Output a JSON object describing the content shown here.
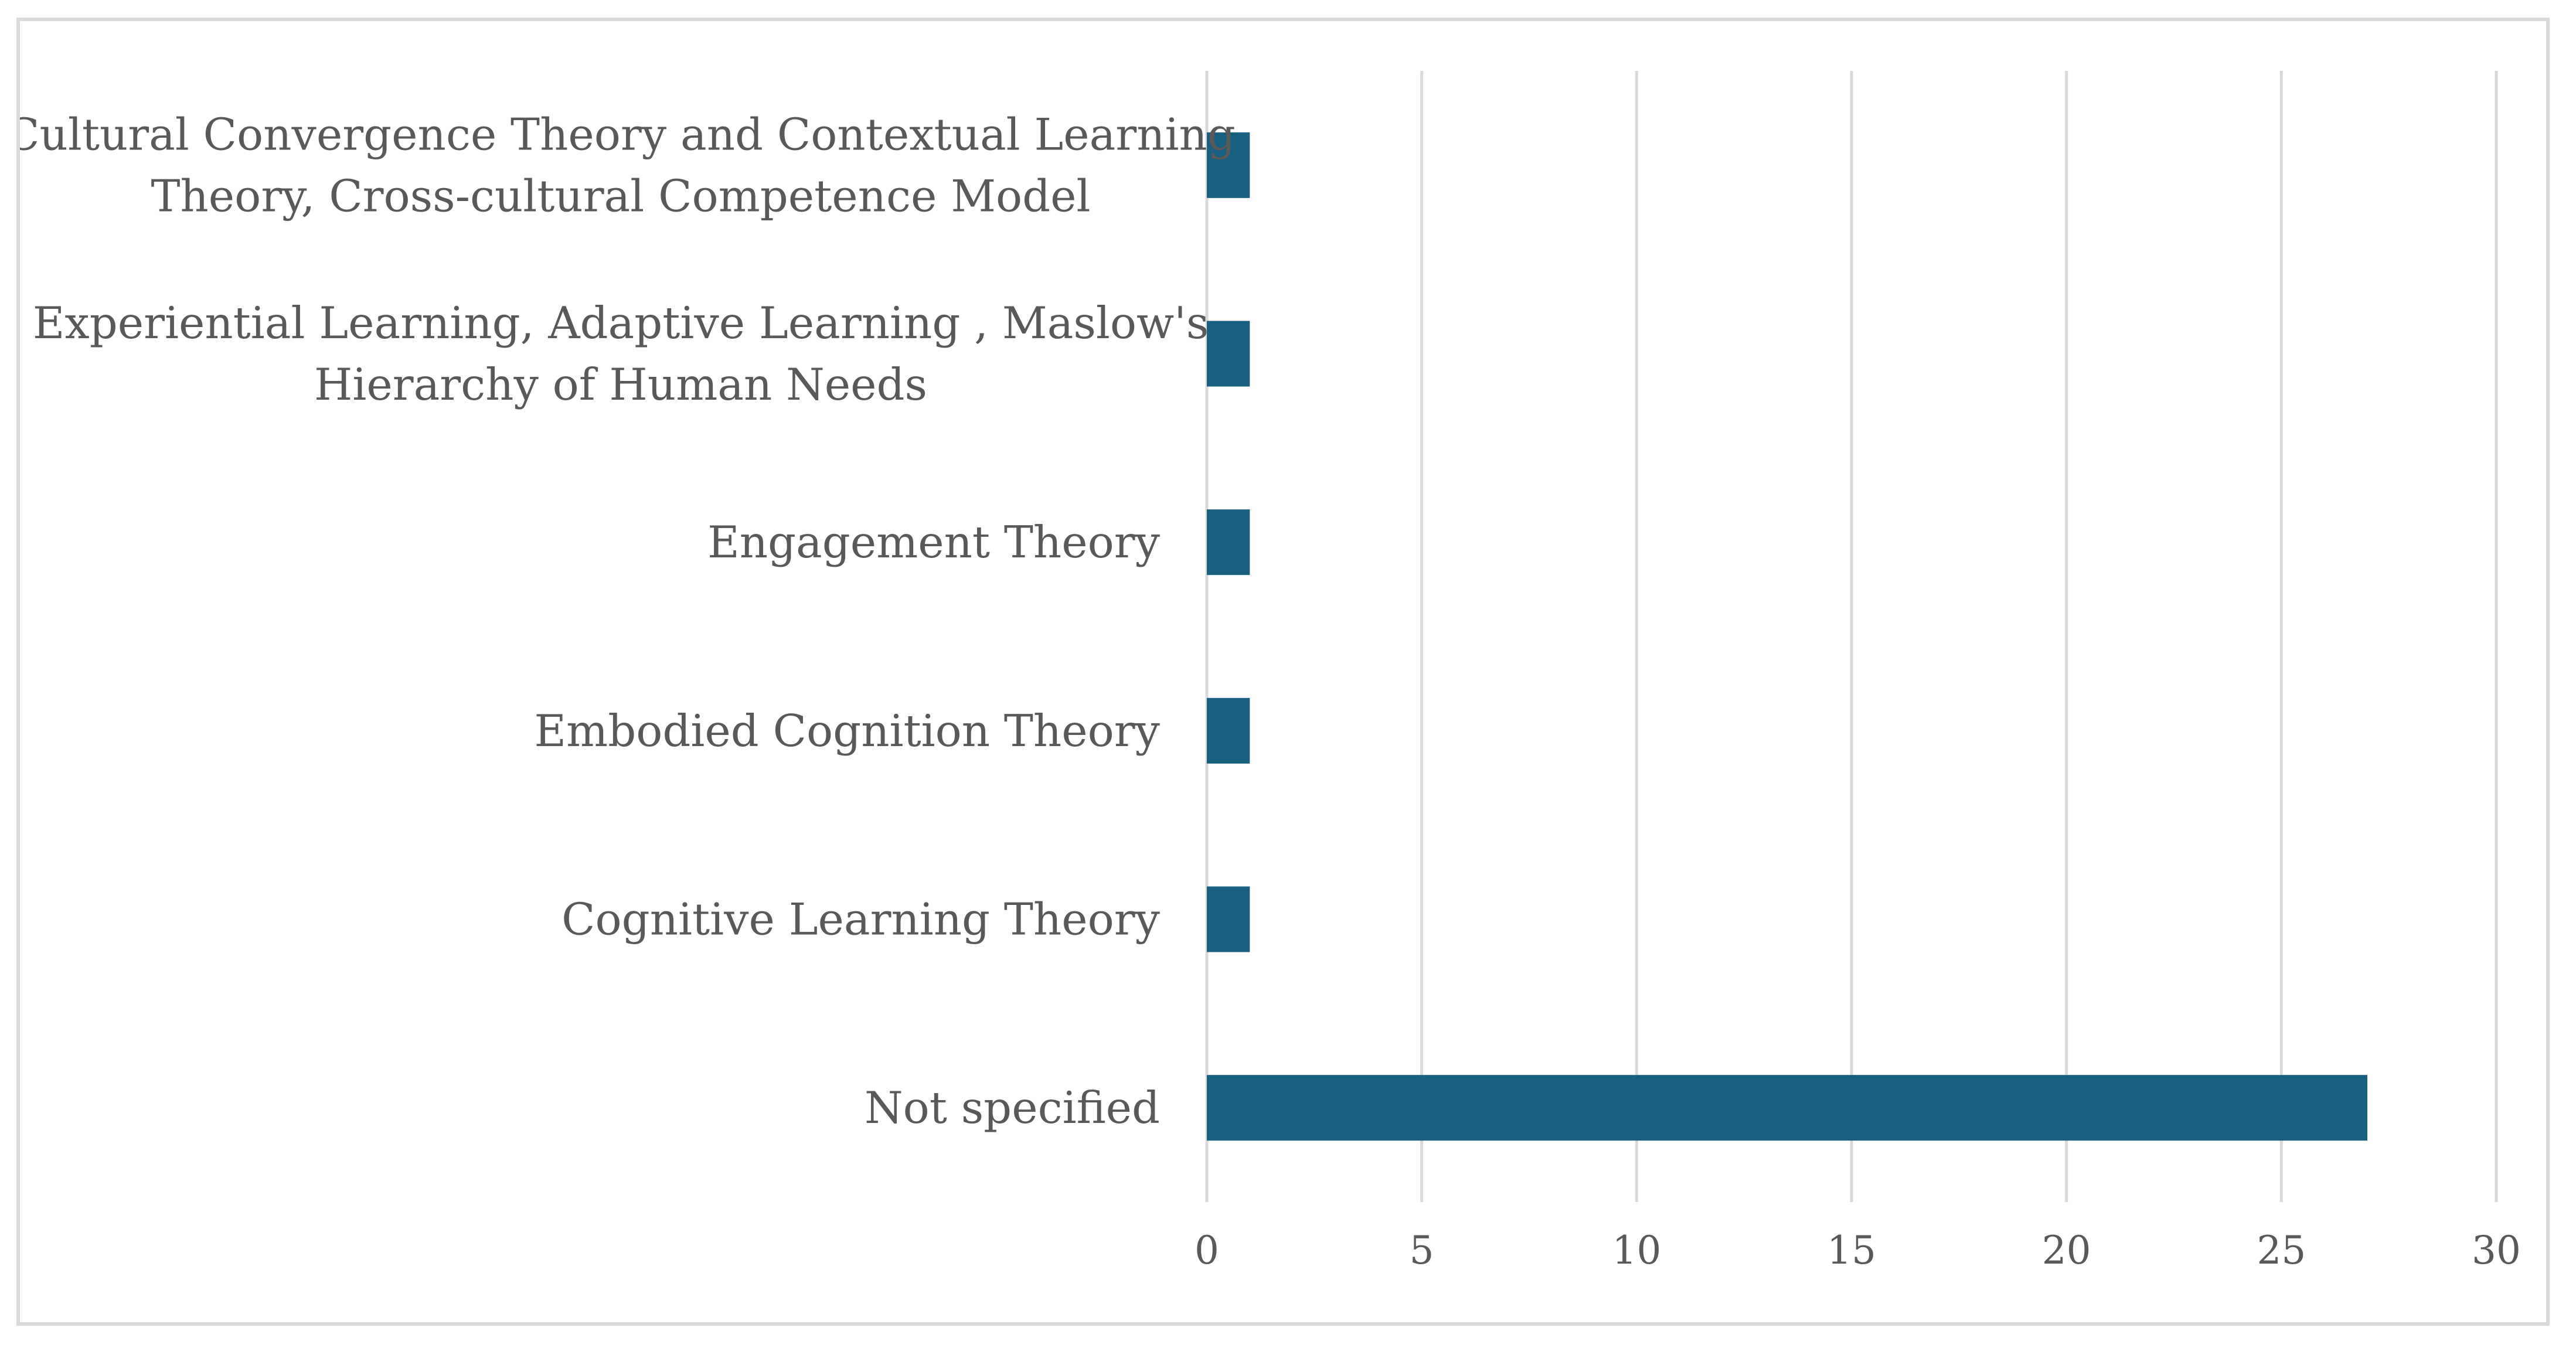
{
  "chart_data": {
    "type": "bar",
    "orientation": "horizontal",
    "categories": [
      "Not specified",
      "Cognitive Learning Theory",
      "Embodied Cognition Theory",
      "Engagement Theory",
      "Experiential Learning, Adaptive Learning , Maslow's Hierarchy of Human Needs",
      "Cultural Convergence Theory and Contextual Learning Theory, Cross-cultural Competence Model"
    ],
    "category_label_lines": [
      [
        "Not specified"
      ],
      [
        "Cognitive Learning Theory"
      ],
      [
        "Embodied Cognition Theory"
      ],
      [
        "Engagement Theory"
      ],
      [
        "Experiential Learning, Adaptive Learning , Maslow's",
        "Hierarchy of Human Needs"
      ],
      [
        "Cultural Convergence Theory and Contextual Learning",
        "Theory, Cross-cultural Competence Model"
      ]
    ],
    "values": [
      27,
      1,
      1,
      1,
      1,
      1
    ],
    "xlim": [
      0,
      30
    ],
    "xticks": [
      "0",
      "5",
      "10",
      "15",
      "20",
      "25",
      "30"
    ],
    "title": "",
    "xlabel": "",
    "ylabel": "",
    "grid": "vertical",
    "legend": "none",
    "bar_color": "#185f80",
    "grid_color": "#d9d9d9",
    "text_color": "#595959"
  }
}
